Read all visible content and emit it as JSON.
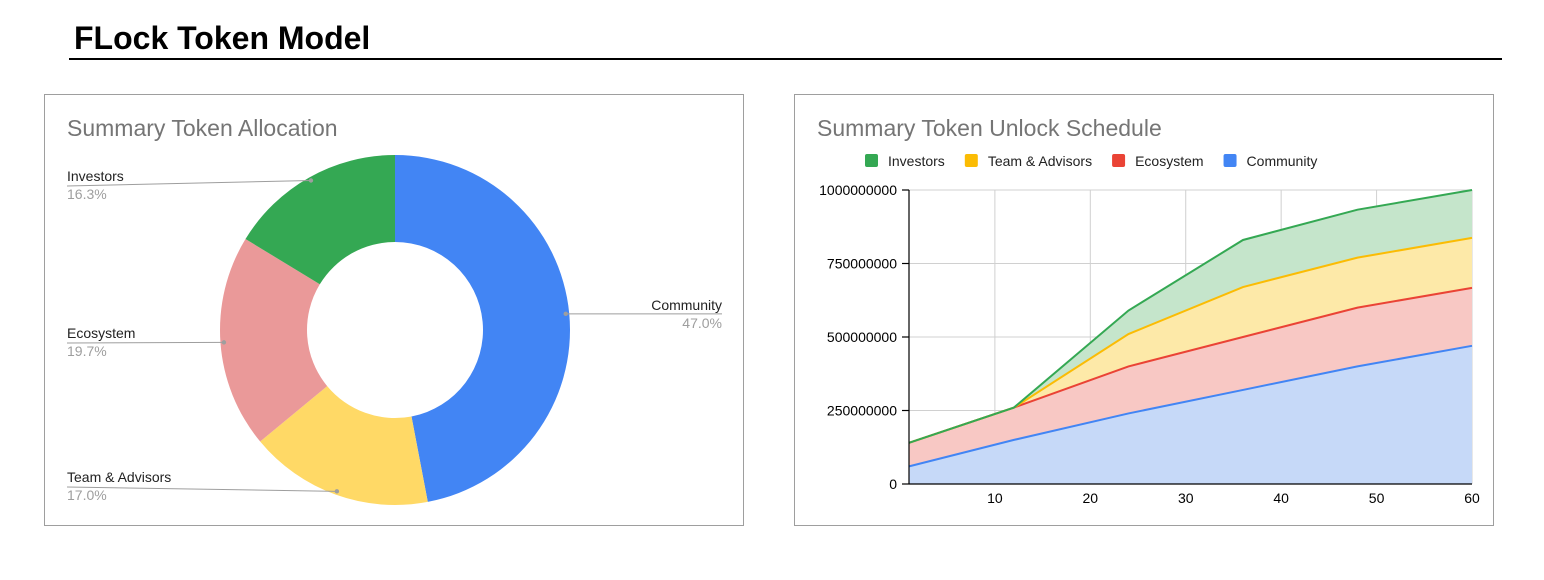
{
  "page": {
    "title": "FLock Token Model"
  },
  "chart_data": [
    {
      "type": "pie",
      "donut": true,
      "title": "Summary Token Allocation",
      "slices": [
        {
          "label": "Community",
          "value": 47.0,
          "pct_label": "47.0%",
          "color": "#4285f4"
        },
        {
          "label": "Team & Advisors",
          "value": 17.0,
          "pct_label": "17.0%",
          "color": "#ffd966"
        },
        {
          "label": "Ecosystem",
          "value": 19.7,
          "pct_label": "19.7%",
          "color": "#ea9999"
        },
        {
          "label": "Investors",
          "value": 16.3,
          "pct_label": "16.3%",
          "color": "#34a853"
        }
      ]
    },
    {
      "type": "area",
      "stacked": true,
      "title": "Summary Token Unlock Schedule",
      "legend_position": "top",
      "xlim": [
        1,
        60
      ],
      "ylim": [
        0,
        1000000000
      ],
      "x_ticks": [
        10,
        20,
        30,
        40,
        50,
        60
      ],
      "y_ticks": [
        0,
        250000000,
        500000000,
        750000000,
        1000000000
      ],
      "y_tick_labels": [
        "0",
        "250000000",
        "500000000",
        "750000000",
        "1000000000"
      ],
      "grid": true,
      "x": [
        1,
        12,
        24,
        36,
        48,
        60
      ],
      "legend": [
        {
          "name": "Investors",
          "color": "#34a853"
        },
        {
          "name": "Team & Advisors",
          "color": "#fbbc04"
        },
        {
          "name": "Ecosystem",
          "color": "#ea4335"
        },
        {
          "name": "Community",
          "color": "#4285f4"
        }
      ],
      "series": [
        {
          "name": "Community",
          "line_color": "#4285f4",
          "fill_color": "#c6d9f8",
          "values": [
            60000000,
            150000000,
            240000000,
            320000000,
            400000000,
            470000000
          ]
        },
        {
          "name": "Ecosystem",
          "line_color": "#ea4335",
          "fill_color": "#f8c8c4",
          "values": [
            80000000,
            110000000,
            160000000,
            180000000,
            200000000,
            197000000
          ]
        },
        {
          "name": "Team & Advisors",
          "line_color": "#fbbc04",
          "fill_color": "#fde9a8",
          "values": [
            0,
            0,
            110000000,
            170000000,
            170000000,
            170000000
          ]
        },
        {
          "name": "Investors",
          "line_color": "#34a853",
          "fill_color": "#c5e5cb",
          "values": [
            0,
            0,
            80000000,
            160000000,
            163000000,
            163000000
          ]
        }
      ]
    }
  ]
}
